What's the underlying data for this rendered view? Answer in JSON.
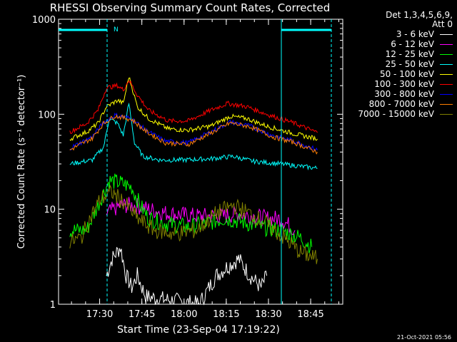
{
  "chart_data": {
    "type": "line",
    "title": "RHESSI Observing Summary Count Rates, Corrected",
    "xlabel": "Start Time (23-Sep-04 17:19:22)",
    "ylabel": "Corrected Count Rate (s⁻¹ detector⁻¹)",
    "yscale": "log",
    "ylim": [
      1,
      1000
    ],
    "xlim_minutes": [
      -4,
      97
    ],
    "x_ticks": [
      {
        "label": "17:30",
        "t": 10.6
      },
      {
        "label": "17:45",
        "t": 25.6
      },
      {
        "label": "18:00",
        "t": 40.6
      },
      {
        "label": "18:15",
        "t": 55.6
      },
      {
        "label": "18:30",
        "t": 70.6
      },
      {
        "label": "18:45",
        "t": 85.6
      }
    ],
    "y_ticks": [
      {
        "label": "1",
        "v": 1
      },
      {
        "label": "10",
        "v": 10
      },
      {
        "label": "100",
        "v": 100
      },
      {
        "label": "1000",
        "v": 1000
      }
    ],
    "detector_info": "Det 1,3,4,5,6,9,",
    "attenuator_info": "Att 0",
    "annotation_marker": "N",
    "footer_date": "21-Oct-2021 05:56",
    "series": [
      {
        "name": "3 - 6 keV",
        "color": "#ffffff",
        "points": [
          [
            13,
            2
          ],
          [
            15,
            3
          ],
          [
            18,
            4
          ],
          [
            20,
            2
          ],
          [
            22,
            1.5
          ],
          [
            24,
            2
          ],
          [
            27,
            1.2
          ],
          [
            46,
            1
          ],
          [
            52,
            2
          ],
          [
            56,
            2.5
          ],
          [
            60,
            3
          ],
          [
            64,
            2
          ],
          [
            68,
            1.5
          ],
          [
            70,
            2
          ]
        ]
      },
      {
        "name": "6 - 12 keV",
        "color": "#ff00ff",
        "points": [
          [
            13,
            9
          ],
          [
            18,
            11
          ],
          [
            23,
            11
          ],
          [
            28,
            10
          ],
          [
            35,
            9
          ],
          [
            45,
            8.5
          ],
          [
            55,
            8.5
          ],
          [
            60,
            9
          ],
          [
            65,
            8.5
          ],
          [
            70,
            8
          ],
          [
            75,
            8
          ],
          [
            80,
            6
          ]
        ]
      },
      {
        "name": "12 - 25 keV",
        "color": "#00ff00",
        "points": [
          [
            0,
            6
          ],
          [
            6,
            6
          ],
          [
            10,
            11
          ],
          [
            14,
            20
          ],
          [
            18,
            19
          ],
          [
            22,
            17
          ],
          [
            25,
            11
          ],
          [
            28,
            8
          ],
          [
            35,
            7
          ],
          [
            42,
            6.5
          ],
          [
            48,
            7
          ],
          [
            55,
            8
          ],
          [
            60,
            7.5
          ],
          [
            68,
            6.5
          ],
          [
            75,
            6
          ],
          [
            82,
            5
          ],
          [
            86,
            4
          ]
        ]
      },
      {
        "name": "25 - 50 keV",
        "color": "#00ffff",
        "points": [
          [
            0,
            30
          ],
          [
            8,
            33
          ],
          [
            12,
            45
          ],
          [
            14,
            90
          ],
          [
            17,
            80
          ],
          [
            19,
            60
          ],
          [
            21,
            130
          ],
          [
            23,
            50
          ],
          [
            26,
            36
          ],
          [
            32,
            33
          ],
          [
            40,
            33
          ],
          [
            50,
            34
          ],
          [
            58,
            36
          ],
          [
            65,
            32
          ],
          [
            75,
            30
          ],
          [
            88,
            27
          ]
        ]
      },
      {
        "name": "50 - 100 keV",
        "color": "#ffff00",
        "points": [
          [
            0,
            55
          ],
          [
            6,
            65
          ],
          [
            10,
            80
          ],
          [
            13,
            120
          ],
          [
            17,
            140
          ],
          [
            19,
            130
          ],
          [
            21,
            250
          ],
          [
            24,
            120
          ],
          [
            28,
            90
          ],
          [
            35,
            70
          ],
          [
            42,
            68
          ],
          [
            50,
            75
          ],
          [
            57,
            95
          ],
          [
            63,
            90
          ],
          [
            70,
            75
          ],
          [
            80,
            62
          ],
          [
            88,
            55
          ]
        ]
      },
      {
        "name": "100 - 300 keV",
        "color": "#ff0000",
        "points": [
          [
            0,
            65
          ],
          [
            6,
            80
          ],
          [
            10,
            110
          ],
          [
            13,
            190
          ],
          [
            17,
            200
          ],
          [
            19,
            180
          ],
          [
            21,
            230
          ],
          [
            24,
            160
          ],
          [
            28,
            110
          ],
          [
            35,
            85
          ],
          [
            42,
            85
          ],
          [
            50,
            110
          ],
          [
            56,
            130
          ],
          [
            63,
            120
          ],
          [
            70,
            100
          ],
          [
            80,
            80
          ],
          [
            88,
            64
          ]
        ]
      },
      {
        "name": "300 - 800 keV",
        "color": "#0000ff",
        "points": [
          [
            0,
            44
          ],
          [
            8,
            58
          ],
          [
            12,
            82
          ],
          [
            16,
            98
          ],
          [
            22,
            90
          ],
          [
            27,
            68
          ],
          [
            34,
            52
          ],
          [
            42,
            50
          ],
          [
            50,
            65
          ],
          [
            57,
            83
          ],
          [
            64,
            75
          ],
          [
            72,
            60
          ],
          [
            80,
            52
          ],
          [
            88,
            42
          ]
        ]
      },
      {
        "name": "800 - 7000 keV",
        "color": "#ff8000",
        "points": [
          [
            0,
            42
          ],
          [
            8,
            56
          ],
          [
            12,
            80
          ],
          [
            16,
            96
          ],
          [
            22,
            88
          ],
          [
            27,
            66
          ],
          [
            34,
            50
          ],
          [
            42,
            48
          ],
          [
            50,
            63
          ],
          [
            57,
            81
          ],
          [
            64,
            74
          ],
          [
            72,
            58
          ],
          [
            80,
            50
          ],
          [
            88,
            40
          ]
        ]
      },
      {
        "name": "7000 - 15000 keV",
        "color": "#808000",
        "points": [
          [
            0,
            4.5
          ],
          [
            4,
            5
          ],
          [
            8,
            9
          ],
          [
            11,
            13
          ],
          [
            15,
            15
          ],
          [
            19,
            12
          ],
          [
            24,
            8
          ],
          [
            30,
            6
          ],
          [
            37,
            5.5
          ],
          [
            45,
            6
          ],
          [
            52,
            9
          ],
          [
            58,
            11
          ],
          [
            64,
            9
          ],
          [
            70,
            7
          ],
          [
            76,
            5
          ],
          [
            82,
            3.5
          ],
          [
            88,
            3
          ]
        ]
      }
    ]
  }
}
